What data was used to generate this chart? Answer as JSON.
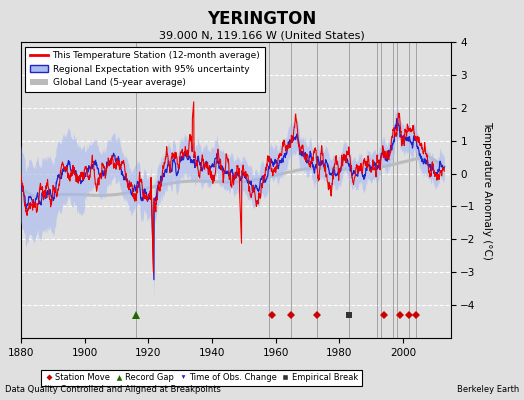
{
  "title": "YERINGTON",
  "subtitle": "39.000 N, 119.166 W (United States)",
  "ylabel": "Temperature Anomaly (°C)",
  "xlabel_left": "Data Quality Controlled and Aligned at Breakpoints",
  "xlabel_right": "Berkeley Earth",
  "ylim": [
    -5,
    4
  ],
  "yticks": [
    -4,
    -3,
    -2,
    -1,
    0,
    1,
    2,
    3,
    4
  ],
  "xlim": [
    1880,
    2015
  ],
  "xticks": [
    1880,
    1900,
    1920,
    1940,
    1960,
    1980,
    2000
  ],
  "background_color": "#e0e0e0",
  "plot_bg_color": "#e0e0e0",
  "grid_color": "#ffffff",
  "station_color": "#ee0000",
  "regional_color": "#2222cc",
  "regional_fill_color": "#aabbee",
  "global_color": "#bbbbbb",
  "vertical_line_color": "#999999",
  "vertical_lines": [
    1916,
    1958,
    1965,
    1973,
    1983,
    1992,
    1993,
    1997,
    1998,
    2002,
    2004
  ],
  "station_move_years": [
    1959,
    1965,
    1973,
    1994,
    1999,
    2002,
    2004
  ],
  "record_gap_years": [
    1916
  ],
  "obs_change_years": [],
  "empirical_break_years": [
    1983
  ],
  "seed": 17
}
